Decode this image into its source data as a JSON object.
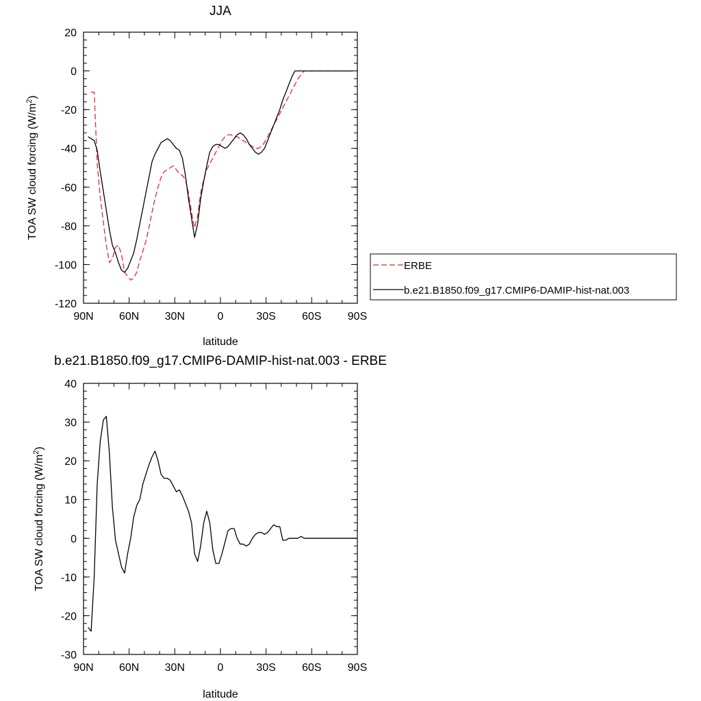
{
  "chart_data": [
    {
      "type": "line",
      "title": "JJA",
      "xlabel": "latitude",
      "ylabel": "TOA SW cloud forcing (W/m",
      "ylabel_sup": "2",
      "ylabel_close": ")",
      "xlim": [
        90,
        -90
      ],
      "ylim": [
        -120,
        20
      ],
      "x_ticks": [
        {
          "value": 90,
          "label": "90N"
        },
        {
          "value": 60,
          "label": "60N"
        },
        {
          "value": 30,
          "label": "30N"
        },
        {
          "value": 0,
          "label": "0"
        },
        {
          "value": -30,
          "label": "30S"
        },
        {
          "value": -60,
          "label": "60S"
        },
        {
          "value": -90,
          "label": "90S"
        }
      ],
      "y_ticks": [
        {
          "value": 20,
          "label": "20"
        },
        {
          "value": 0,
          "label": "0"
        },
        {
          "value": -20,
          "label": "-20"
        },
        {
          "value": -40,
          "label": "-40"
        },
        {
          "value": -60,
          "label": "-60"
        },
        {
          "value": -80,
          "label": "-80"
        },
        {
          "value": -100,
          "label": "-100"
        },
        {
          "value": -120,
          "label": "-120"
        }
      ],
      "legend": "right",
      "series": [
        {
          "name": "ERBE",
          "color": "#e0282e",
          "dash": "dashed",
          "x": [
            85,
            83,
            81,
            79,
            77,
            75,
            73,
            71,
            69,
            67,
            65,
            63,
            61,
            59,
            57,
            55,
            53,
            51,
            49,
            47,
            45,
            43,
            41,
            39,
            37,
            35,
            33,
            31,
            29,
            27,
            25,
            23,
            21,
            19,
            17,
            15,
            13,
            11,
            9,
            7,
            5,
            3,
            1,
            -1,
            -3,
            -5,
            -7,
            -9,
            -11,
            -13,
            -15,
            -17,
            -19,
            -21,
            -23,
            -25,
            -27,
            -29,
            -31,
            -33,
            -35,
            -37,
            -39,
            -41,
            -43,
            -45,
            -47,
            -49,
            -51,
            -53,
            -55,
            -57,
            -59,
            -61,
            -63,
            -65,
            -67,
            -69,
            -71,
            -73,
            -75,
            -77,
            -79,
            -81,
            -83,
            -85,
            -87
          ],
          "y": [
            -11,
            -11,
            -48,
            -65,
            -78,
            -90,
            -99,
            -97,
            -91,
            -90,
            -95,
            -104,
            -106,
            -108,
            -107,
            -104,
            -98,
            -93,
            -88,
            -81,
            -73,
            -66,
            -60,
            -55,
            -52,
            -51,
            -50,
            -49,
            -51,
            -53,
            -54,
            -56,
            -63,
            -73,
            -81,
            -75,
            -63,
            -56,
            -51,
            -48,
            -45,
            -42,
            -39,
            -36,
            -34,
            -33,
            -33,
            -34,
            -34,
            -35,
            -36,
            -37,
            -38,
            -39,
            -40,
            -40,
            -39,
            -37,
            -34,
            -31,
            -28,
            -25,
            -22,
            -19,
            -16,
            -13,
            -10,
            -7,
            -4,
            -2,
            0,
            0,
            0,
            0,
            0,
            0,
            0,
            0,
            0,
            0,
            0,
            0,
            0,
            0,
            0,
            0,
            0
          ]
        },
        {
          "name": "b.e21.B1850.f09_g17.CMIP6-DAMIP-hist-nat.003",
          "color": "#000000",
          "dash": "solid",
          "x": [
            87,
            83,
            81,
            79,
            77,
            75,
            73,
            71,
            69,
            67,
            65,
            63,
            61,
            59,
            57,
            55,
            53,
            51,
            49,
            47,
            45,
            43,
            41,
            39,
            37,
            35,
            33,
            31,
            29,
            27,
            25,
            23,
            21,
            19,
            17,
            15,
            13,
            11,
            9,
            7,
            5,
            3,
            1,
            -1,
            -3,
            -5,
            -7,
            -9,
            -11,
            -13,
            -15,
            -17,
            -19,
            -21,
            -23,
            -25,
            -27,
            -29,
            -31,
            -33,
            -35,
            -37,
            -39,
            -41,
            -43,
            -45,
            -47,
            -49,
            -51,
            -53,
            -55,
            -57,
            -59,
            -61,
            -63,
            -65,
            -67,
            -69,
            -71,
            -73,
            -75,
            -77,
            -79,
            -81,
            -83,
            -85,
            -87
          ],
          "y": [
            -34,
            -36,
            -41,
            -52,
            -62,
            -72,
            -82,
            -90,
            -94,
            -99,
            -103,
            -104,
            -102,
            -98,
            -94,
            -87,
            -79,
            -71,
            -63,
            -55,
            -47,
            -43,
            -40,
            -37,
            -36,
            -35,
            -36,
            -38,
            -40,
            -41,
            -45,
            -54,
            -66,
            -76,
            -86,
            -79,
            -66,
            -57,
            -49,
            -42,
            -39,
            -38,
            -38,
            -39,
            -40,
            -39,
            -37,
            -35,
            -33,
            -32,
            -33,
            -35,
            -38,
            -40,
            -42,
            -43,
            -42,
            -40,
            -36,
            -32,
            -28,
            -24,
            -20,
            -15,
            -11,
            -7,
            -3,
            0,
            0,
            0,
            0,
            0,
            0,
            0,
            0,
            0,
            0,
            0,
            0,
            0,
            0,
            0,
            0,
            0,
            0,
            0,
            0
          ]
        }
      ]
    },
    {
      "type": "line",
      "title": "b.e21.B1850.f09_g17.CMIP6-DAMIP-hist-nat.003 - ERBE",
      "xlabel": "latitude",
      "ylabel": "TOA SW cloud forcing (W/m",
      "ylabel_sup": "2",
      "ylabel_close": ")",
      "xlim": [
        90,
        -90
      ],
      "ylim": [
        -30,
        40
      ],
      "x_ticks": [
        {
          "value": 90,
          "label": "90N"
        },
        {
          "value": 60,
          "label": "60N"
        },
        {
          "value": 30,
          "label": "30N"
        },
        {
          "value": 0,
          "label": "0"
        },
        {
          "value": -30,
          "label": "30S"
        },
        {
          "value": -60,
          "label": "60S"
        },
        {
          "value": -90,
          "label": "90S"
        }
      ],
      "y_ticks": [
        {
          "value": 40,
          "label": "40"
        },
        {
          "value": 30,
          "label": "30"
        },
        {
          "value": 20,
          "label": "20"
        },
        {
          "value": 10,
          "label": "10"
        },
        {
          "value": 0,
          "label": "0"
        },
        {
          "value": -10,
          "label": "-10"
        },
        {
          "value": -20,
          "label": "-20"
        },
        {
          "value": -30,
          "label": "-30"
        }
      ],
      "series": [
        {
          "name": "",
          "color": "#000000",
          "dash": "solid",
          "x": [
            87,
            85,
            83,
            81,
            79,
            77,
            75,
            73,
            71,
            69,
            67,
            65,
            63,
            61,
            59,
            57,
            55,
            53,
            51,
            49,
            47,
            45,
            43,
            41,
            39,
            37,
            35,
            33,
            31,
            29,
            27,
            25,
            23,
            21,
            19,
            17,
            15,
            13,
            11,
            9,
            7,
            5,
            3,
            1,
            -1,
            -3,
            -5,
            -7,
            -9,
            -11,
            -13,
            -15,
            -17,
            -19,
            -21,
            -23,
            -25,
            -27,
            -29,
            -31,
            -33,
            -35,
            -37,
            -39,
            -41,
            -43,
            -45,
            -47,
            -49,
            -51,
            -53,
            -55,
            -57,
            -59,
            -61,
            -63,
            -65,
            -67,
            -69,
            -71,
            -73,
            -75,
            -77,
            -79,
            -81,
            -83,
            -85,
            -87,
            -89
          ],
          "y": [
            -23,
            -24,
            -10,
            14,
            25,
            30.5,
            31.5,
            22,
            8,
            -0.5,
            -4,
            -7.5,
            -9,
            -4,
            0,
            5.5,
            8.5,
            10,
            14,
            16.5,
            19,
            21,
            22.5,
            20,
            16.5,
            15.5,
            15.5,
            15,
            13.5,
            12,
            12.5,
            11,
            9,
            7,
            4,
            -4,
            -6,
            -2,
            4,
            7,
            4,
            -3,
            -6.5,
            -6.5,
            -4,
            -1,
            2,
            2.5,
            2.5,
            0,
            -1.5,
            -1.5,
            -2,
            -1.5,
            0,
            1,
            1.5,
            1.5,
            1,
            1.5,
            2.5,
            3.5,
            3,
            3,
            -0.5,
            -0.5,
            0,
            0,
            0,
            0,
            0.5,
            0,
            0,
            0,
            0,
            0,
            0,
            0,
            0,
            0,
            0,
            0,
            0,
            0,
            0,
            0,
            0,
            0,
            0
          ]
        }
      ]
    }
  ]
}
